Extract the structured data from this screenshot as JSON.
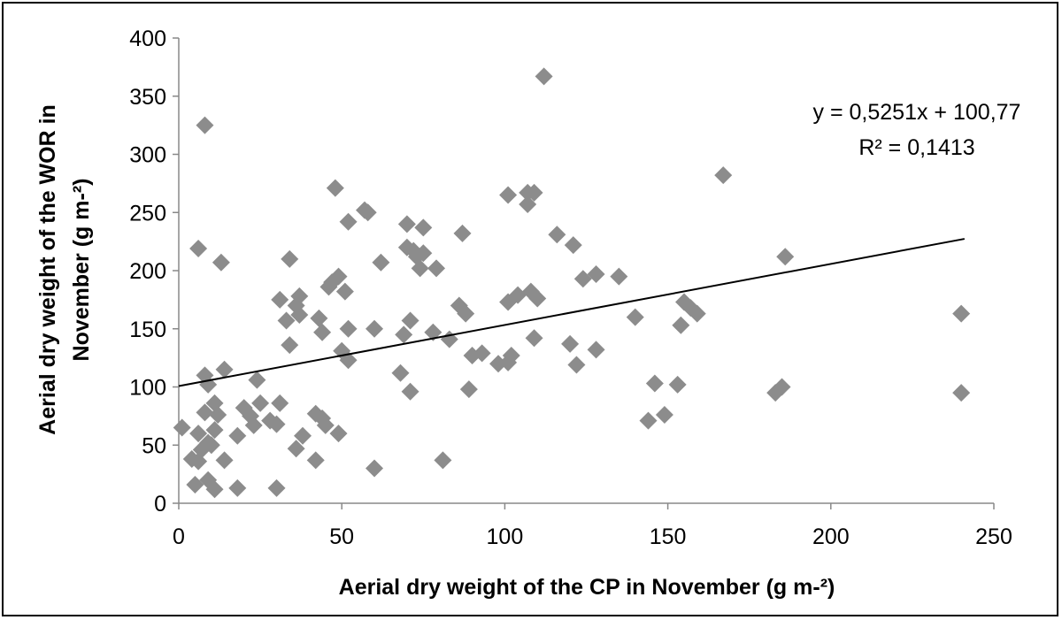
{
  "chart_data": {
    "type": "scatter",
    "title": "",
    "xlabel": "Aerial dry weight of the CP in November (g m-²)",
    "ylabel_line1": "Aerial dry weight of the WOR in",
    "ylabel_line2": "November (g m-²)",
    "xlim": [
      0,
      250
    ],
    "ylim": [
      0,
      400
    ],
    "xticks": [
      0,
      50,
      100,
      150,
      200,
      250
    ],
    "yticks": [
      0,
      50,
      100,
      150,
      200,
      250,
      300,
      350,
      400
    ],
    "grid": false,
    "marker": "diamond",
    "marker_color": "#8c8c8c",
    "trendline": {
      "slope": 0.5251,
      "intercept": 100.77,
      "x_range": [
        0,
        241
      ],
      "color": "#000000"
    },
    "equation_text": "y = 0,5251x + 100,77",
    "r2_text": "R² = 0,1413",
    "points": [
      [
        112,
        367
      ],
      [
        8,
        325
      ],
      [
        167,
        282
      ],
      [
        48,
        271
      ],
      [
        101,
        265
      ],
      [
        107,
        267
      ],
      [
        109,
        267
      ],
      [
        107,
        257
      ],
      [
        57,
        252
      ],
      [
        58,
        250
      ],
      [
        52,
        242
      ],
      [
        70,
        240
      ],
      [
        75,
        237
      ],
      [
        87,
        232
      ],
      [
        116,
        231
      ],
      [
        6,
        219
      ],
      [
        121,
        222
      ],
      [
        70,
        220
      ],
      [
        72,
        217
      ],
      [
        75,
        215
      ],
      [
        73,
        212
      ],
      [
        186,
        212
      ],
      [
        34,
        210
      ],
      [
        13,
        207
      ],
      [
        62,
        207
      ],
      [
        74,
        202
      ],
      [
        79,
        202
      ],
      [
        128,
        197
      ],
      [
        135,
        195
      ],
      [
        49,
        195
      ],
      [
        124,
        193
      ],
      [
        47,
        190
      ],
      [
        46,
        186
      ],
      [
        51,
        182
      ],
      [
        108,
        182
      ],
      [
        104,
        179
      ],
      [
        110,
        176
      ],
      [
        37,
        178
      ],
      [
        31,
        175
      ],
      [
        101,
        173
      ],
      [
        155,
        173
      ],
      [
        157,
        168
      ],
      [
        159,
        163
      ],
      [
        240,
        163
      ],
      [
        36,
        170
      ],
      [
        86,
        170
      ],
      [
        88,
        163
      ],
      [
        33,
        157
      ],
      [
        37,
        162
      ],
      [
        43,
        159
      ],
      [
        140,
        160
      ],
      [
        71,
        157
      ],
      [
        154,
        153
      ],
      [
        52,
        150
      ],
      [
        60,
        150
      ],
      [
        44,
        147
      ],
      [
        69,
        145
      ],
      [
        78,
        147
      ],
      [
        83,
        141
      ],
      [
        109,
        142
      ],
      [
        120,
        137
      ],
      [
        34,
        136
      ],
      [
        50,
        131
      ],
      [
        128,
        132
      ],
      [
        93,
        129
      ],
      [
        90,
        127
      ],
      [
        102,
        127
      ],
      [
        52,
        123
      ],
      [
        98,
        120
      ],
      [
        101,
        121
      ],
      [
        122,
        119
      ],
      [
        14,
        115
      ],
      [
        68,
        112
      ],
      [
        8,
        110
      ],
      [
        24,
        106
      ],
      [
        9,
        102
      ],
      [
        146,
        103
      ],
      [
        153,
        102
      ],
      [
        185,
        100
      ],
      [
        183,
        95
      ],
      [
        240,
        95
      ],
      [
        71,
        96
      ],
      [
        89,
        98
      ],
      [
        11,
        86
      ],
      [
        31,
        86
      ],
      [
        25,
        86
      ],
      [
        20,
        82
      ],
      [
        8,
        78
      ],
      [
        12,
        76
      ],
      [
        22,
        75
      ],
      [
        42,
        77
      ],
      [
        44,
        73
      ],
      [
        149,
        76
      ],
      [
        28,
        71
      ],
      [
        144,
        71
      ],
      [
        1,
        65
      ],
      [
        23,
        67
      ],
      [
        30,
        68
      ],
      [
        45,
        67
      ],
      [
        11,
        63
      ],
      [
        6,
        60
      ],
      [
        38,
        58
      ],
      [
        49,
        60
      ],
      [
        18,
        58
      ],
      [
        9,
        52
      ],
      [
        10,
        50
      ],
      [
        7,
        46
      ],
      [
        36,
        47
      ],
      [
        4,
        38
      ],
      [
        6,
        36
      ],
      [
        14,
        37
      ],
      [
        42,
        37
      ],
      [
        81,
        37
      ],
      [
        60,
        30
      ],
      [
        5,
        16
      ],
      [
        9,
        20
      ],
      [
        11,
        12
      ],
      [
        18,
        13
      ],
      [
        30,
        13
      ]
    ]
  }
}
